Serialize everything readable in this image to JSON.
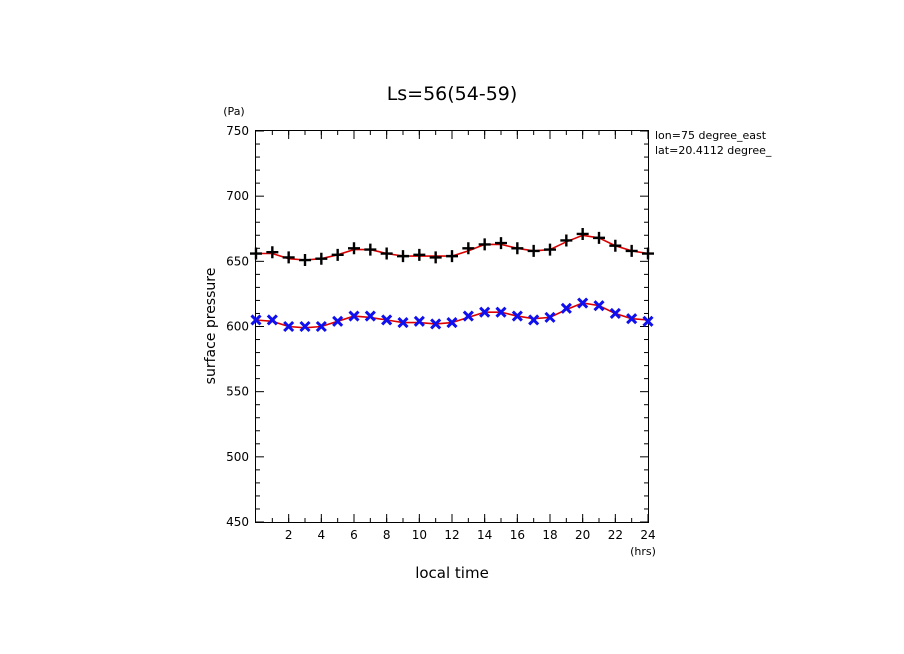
{
  "chart_data": {
    "type": "line",
    "title": "Ls=56(54-59)",
    "xlabel": "local time",
    "ylabel": "surface pressure",
    "x_unit": "(hrs)",
    "y_unit": "(Pa)",
    "xlim": [
      0,
      24
    ],
    "ylim": [
      450,
      750
    ],
    "x_ticks": [
      2,
      4,
      6,
      8,
      10,
      12,
      14,
      16,
      18,
      20,
      22,
      24
    ],
    "y_ticks": [
      450,
      500,
      550,
      600,
      650,
      700,
      750
    ],
    "grid": false,
    "annotations": [
      "lon=75 degree_east",
      "lat=20.4112 degree_"
    ],
    "colors": {
      "fit_line": "#dd0000",
      "upper_markers": "#000000",
      "lower_markers": "#1010ee"
    },
    "series": [
      {
        "marker": "plus",
        "x": [
          0,
          1,
          2,
          3,
          4,
          5,
          6,
          7,
          8,
          9,
          10,
          11,
          12,
          13,
          14,
          15,
          16,
          17,
          18,
          19,
          20,
          21,
          22,
          23,
          24
        ],
        "values": [
          656,
          657,
          653,
          651,
          652,
          655,
          660,
          659,
          656,
          654,
          655,
          653,
          654,
          660,
          663,
          664,
          660,
          658,
          659,
          666,
          671,
          668,
          662,
          658,
          656
        ]
      },
      {
        "marker": "x",
        "x": [
          0,
          1,
          2,
          3,
          4,
          5,
          6,
          7,
          8,
          9,
          10,
          11,
          12,
          13,
          14,
          15,
          16,
          17,
          18,
          19,
          20,
          21,
          22,
          23,
          24
        ],
        "values": [
          605,
          605,
          600,
          600,
          600,
          604,
          608,
          608,
          605,
          603,
          604,
          602,
          603,
          608,
          611,
          611,
          608,
          605,
          607,
          614,
          618,
          616,
          610,
          606,
          604
        ]
      },
      {
        "style": "fit",
        "x": [
          0,
          1,
          2,
          3,
          4,
          5,
          6,
          7,
          8,
          9,
          10,
          11,
          12,
          13,
          14,
          15,
          16,
          17,
          18,
          19,
          20,
          21,
          22,
          23,
          24
        ],
        "values": [
          656,
          656,
          652,
          651,
          652,
          655,
          659,
          659,
          656,
          654,
          654,
          654,
          654,
          658,
          663,
          663,
          660,
          658,
          659,
          665,
          670,
          668,
          662,
          658,
          656
        ]
      },
      {
        "style": "fit",
        "x": [
          0,
          1,
          2,
          3,
          4,
          5,
          6,
          7,
          8,
          9,
          10,
          11,
          12,
          13,
          14,
          15,
          16,
          17,
          18,
          19,
          20,
          21,
          22,
          23,
          24
        ],
        "values": [
          605,
          604,
          600,
          599,
          600,
          604,
          608,
          607,
          605,
          603,
          603,
          602,
          603,
          607,
          611,
          611,
          608,
          606,
          607,
          613,
          618,
          616,
          610,
          606,
          605
        ]
      }
    ]
  }
}
